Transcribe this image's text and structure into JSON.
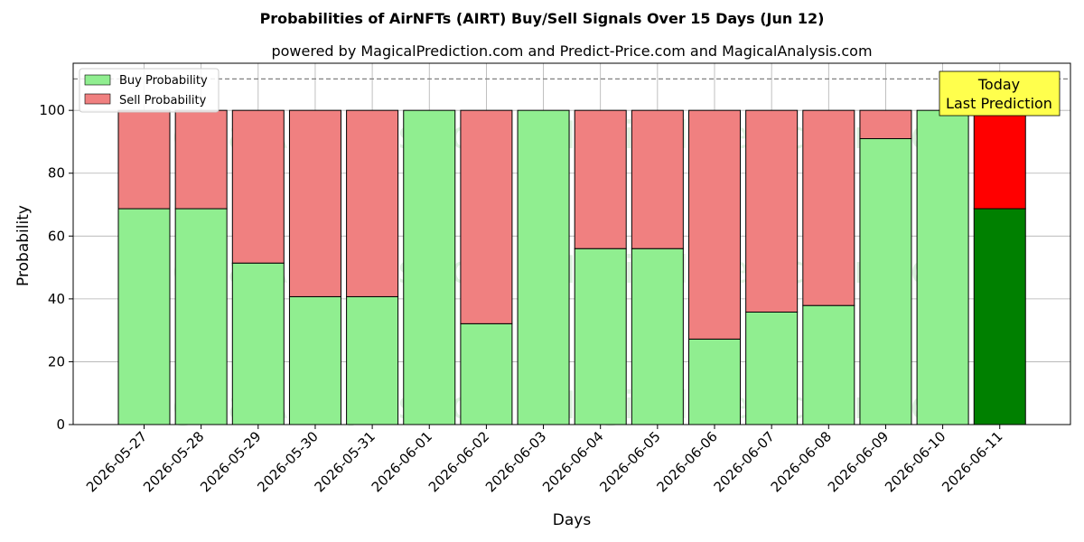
{
  "chart_data": {
    "type": "bar",
    "stacked": true,
    "title": "Probabilities of AirNFTs (AIRT) Buy/Sell Signals Over 15 Days (Jun 12)",
    "subtitle": "powered by MagicalPrediction.com and Predict-Price.com and MagicalAnalysis.com",
    "xlabel": "Days",
    "ylabel": "Probability",
    "ylim": [
      0,
      115
    ],
    "yticks": [
      0,
      20,
      40,
      60,
      80,
      100
    ],
    "reference_line": 110,
    "grid": true,
    "legend_placement": "top-left",
    "categories": [
      "2026-05-27",
      "2026-05-28",
      "2026-05-29",
      "2026-05-30",
      "2026-05-31",
      "2026-06-01",
      "2026-06-02",
      "2026-06-03",
      "2026-06-04",
      "2026-06-05",
      "2026-06-06",
      "2026-06-07",
      "2026-06-08",
      "2026-06-09",
      "2026-06-10",
      "2026-06-11"
    ],
    "series": [
      {
        "name": "Buy Probability",
        "color": "#90ee90",
        "values": [
          68.7,
          68.7,
          51.4,
          40.7,
          40.7,
          100,
          32.1,
          100,
          56,
          56,
          27.2,
          35.8,
          37.9,
          91,
          100,
          68.7
        ]
      },
      {
        "name": "Sell Probability",
        "color": "#f08080",
        "values": [
          31.3,
          31.3,
          48.6,
          59.3,
          59.3,
          0,
          67.9,
          0,
          44,
          44,
          72.8,
          64.2,
          62.1,
          9,
          0,
          31.3
        ]
      }
    ],
    "highlight": {
      "index": 15,
      "buy_color": "#008000",
      "sell_color": "#ff0000"
    },
    "annotation": {
      "line1": "Today",
      "line2": "Last Prediction",
      "background": "#ffff4d"
    },
    "watermarks": [
      "MagicalAnalysis.com",
      "MagicalPrediction.com"
    ]
  }
}
